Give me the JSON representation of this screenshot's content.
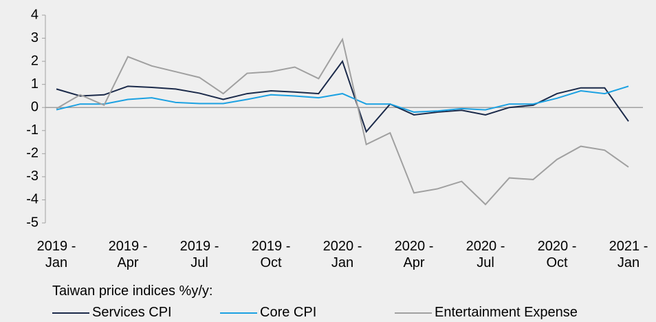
{
  "chart_data": {
    "type": "line",
    "legend_title": "Taiwan price indices %y/y:",
    "categories": [
      "2019 - Jan",
      null,
      null,
      "2019 - Apr",
      null,
      null,
      "2019 - Jul",
      null,
      null,
      "2019 - Oct",
      null,
      null,
      "2020 - Jan",
      null,
      null,
      "2020 - Apr",
      null,
      null,
      "2020 - Jul",
      null,
      null,
      "2020 - Oct",
      null,
      null,
      "2021 - Jan"
    ],
    "series": [
      {
        "name": "Services CPI",
        "color": "#1b2a4a",
        "values": [
          0.8,
          0.5,
          0.55,
          0.92,
          0.87,
          0.8,
          0.62,
          0.35,
          0.6,
          0.72,
          0.67,
          0.6,
          2.0,
          -1.05,
          0.15,
          -0.32,
          -0.2,
          -0.12,
          -0.32,
          0.0,
          0.1,
          0.6,
          0.85,
          0.85,
          -0.6
        ]
      },
      {
        "name": "Core CPI",
        "color": "#1ba1e2",
        "values": [
          -0.1,
          0.15,
          0.15,
          0.35,
          0.42,
          0.22,
          0.17,
          0.17,
          0.35,
          0.55,
          0.5,
          0.42,
          0.6,
          0.15,
          0.15,
          -0.2,
          -0.15,
          -0.05,
          -0.1,
          0.15,
          0.15,
          0.4,
          0.72,
          0.6,
          0.92
        ]
      },
      {
        "name": "Entertainment Expense",
        "color": "#a0a0a0",
        "values": [
          -0.05,
          0.55,
          0.1,
          2.2,
          1.8,
          1.55,
          1.3,
          0.6,
          1.48,
          1.55,
          1.75,
          1.25,
          2.95,
          -1.6,
          -1.1,
          -3.7,
          -3.52,
          -3.2,
          -4.2,
          -3.05,
          -3.12,
          -2.25,
          -1.68,
          -1.85,
          -2.58
        ]
      }
    ],
    "ylim": [
      -5,
      4
    ],
    "yticks": [
      -5,
      -4,
      -3,
      -2,
      -1,
      0,
      1,
      2,
      3,
      4
    ]
  }
}
